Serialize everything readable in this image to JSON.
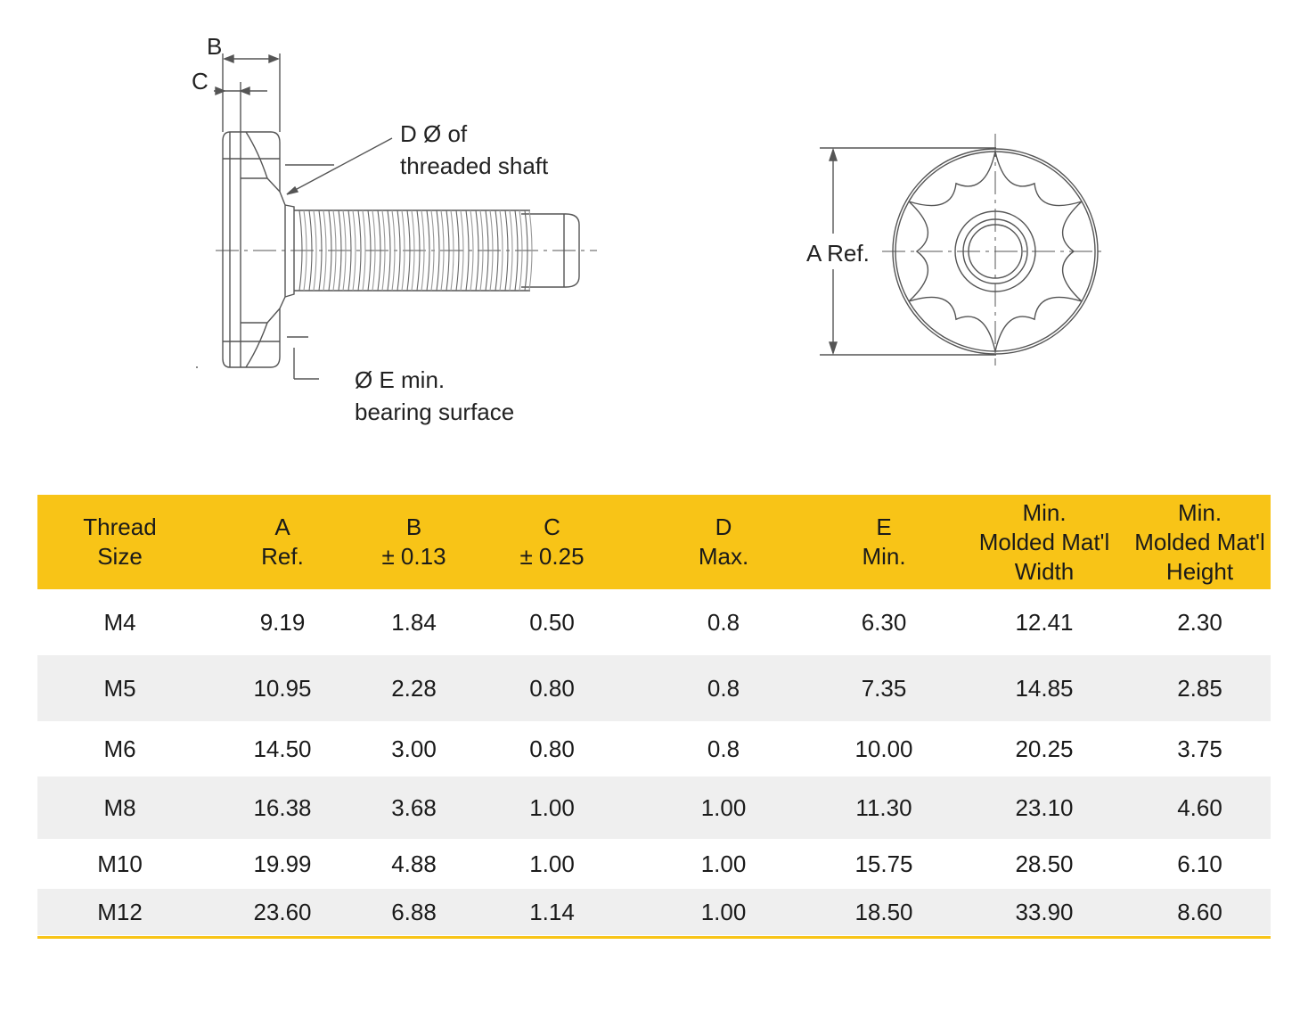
{
  "labels": {
    "b": "B",
    "c": "C",
    "d_line1": "D Ø of",
    "d_line2": "threaded shaft",
    "e_line1": "Ø E min.",
    "e_line2": "bearing surface",
    "a_ref": "A Ref."
  },
  "table": {
    "headers": [
      [
        "Thread",
        "Size"
      ],
      [
        "A",
        "Ref."
      ],
      [
        "B",
        "± 0.13"
      ],
      [
        "C",
        "± 0.25"
      ],
      [
        "D",
        "Max."
      ],
      [
        "E",
        "Min."
      ],
      [
        "Min.",
        "Molded Mat'l",
        "Width"
      ],
      [
        "Min.",
        "Molded Mat'l",
        "Height"
      ]
    ],
    "rows": [
      [
        "M4",
        "9.19",
        "1.84",
        "0.50",
        "0.8",
        "6.30",
        "12.41",
        "2.30"
      ],
      [
        "M5",
        "10.95",
        "2.28",
        "0.80",
        "0.8",
        "7.35",
        "14.85",
        "2.85"
      ],
      [
        "M6",
        "14.50",
        "3.00",
        "0.80",
        "0.8",
        "10.00",
        "20.25",
        "3.75"
      ],
      [
        "M8",
        "16.38",
        "3.68",
        "1.00",
        "1.00",
        "11.30",
        "23.10",
        "4.60"
      ],
      [
        "M10",
        "19.99",
        "4.88",
        "1.00",
        "1.00",
        "15.75",
        "28.50",
        "6.10"
      ],
      [
        "M12",
        "23.60",
        "6.88",
        "1.14",
        "1.00",
        "18.50",
        "33.90",
        "8.60"
      ]
    ]
  },
  "colors": {
    "header_bg": "#f8c417",
    "stripe_bg": "#efefef",
    "line": "#555555"
  }
}
